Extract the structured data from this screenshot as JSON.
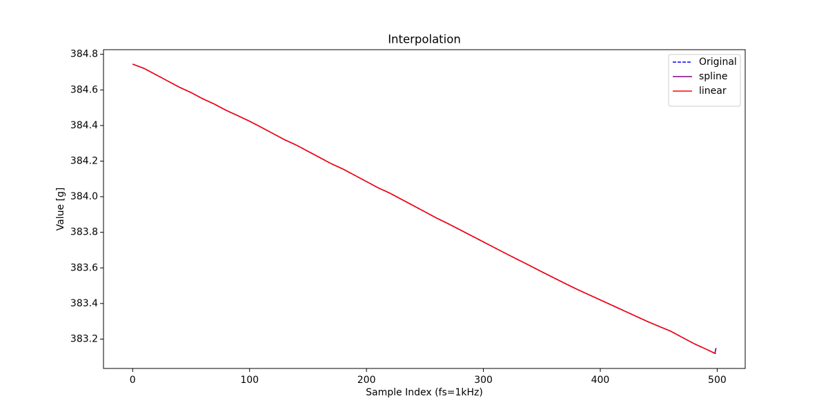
{
  "chart_data": {
    "type": "line",
    "title": "Interpolation",
    "xlabel": "Sample Index (fs=1kHz)",
    "ylabel": "Value [g]",
    "x": [
      0,
      10,
      20,
      30,
      40,
      50,
      60,
      70,
      80,
      90,
      100,
      110,
      120,
      130,
      140,
      150,
      160,
      170,
      180,
      190,
      200,
      210,
      220,
      230,
      240,
      250,
      260,
      270,
      280,
      290,
      300,
      310,
      320,
      330,
      340,
      350,
      360,
      370,
      380,
      390,
      400,
      410,
      420,
      430,
      440,
      450,
      460,
      470,
      480,
      490,
      498,
      499
    ],
    "series": [
      {
        "name": "Original",
        "color": "#0000ff",
        "dashed": true,
        "values": [
          384.745,
          384.72,
          384.685,
          384.65,
          384.615,
          384.585,
          384.55,
          384.52,
          384.485,
          384.455,
          384.424,
          384.39,
          384.355,
          384.32,
          384.29,
          384.255,
          384.22,
          384.185,
          384.155,
          384.12,
          384.085,
          384.05,
          384.02,
          383.985,
          383.95,
          383.915,
          383.88,
          383.848,
          383.814,
          383.78,
          383.746,
          383.712,
          383.678,
          383.645,
          383.612,
          383.578,
          383.545,
          383.512,
          383.48,
          383.45,
          383.42,
          383.39,
          383.36,
          383.33,
          383.3,
          383.272,
          383.245,
          383.21,
          383.175,
          383.145,
          383.12,
          383.15
        ]
      },
      {
        "name": "spline",
        "color": "#800080",
        "dashed": false,
        "values": [
          384.745,
          384.72,
          384.685,
          384.65,
          384.615,
          384.585,
          384.55,
          384.52,
          384.485,
          384.455,
          384.424,
          384.39,
          384.355,
          384.32,
          384.29,
          384.255,
          384.22,
          384.185,
          384.155,
          384.12,
          384.085,
          384.05,
          384.02,
          383.985,
          383.95,
          383.915,
          383.88,
          383.848,
          383.814,
          383.78,
          383.746,
          383.712,
          383.678,
          383.645,
          383.612,
          383.578,
          383.545,
          383.512,
          383.48,
          383.45,
          383.42,
          383.39,
          383.36,
          383.33,
          383.3,
          383.272,
          383.245,
          383.21,
          383.175,
          383.145,
          383.12,
          383.15
        ]
      },
      {
        "name": "linear",
        "color": "#ff0000",
        "dashed": false,
        "values": [
          384.745,
          384.72,
          384.685,
          384.65,
          384.615,
          384.585,
          384.55,
          384.52,
          384.485,
          384.455,
          384.424,
          384.39,
          384.355,
          384.32,
          384.29,
          384.255,
          384.22,
          384.185,
          384.155,
          384.12,
          384.085,
          384.05,
          384.02,
          383.985,
          383.95,
          383.915,
          383.88,
          383.848,
          383.814,
          383.78,
          383.746,
          383.712,
          383.678,
          383.645,
          383.612,
          383.578,
          383.545,
          383.512,
          383.48,
          383.45,
          383.42,
          383.39,
          383.36,
          383.33,
          383.3,
          383.272,
          383.245,
          383.21,
          383.175,
          383.145,
          383.12,
          383.12
        ]
      }
    ],
    "xlim": [
      -24.95,
      523.95
    ],
    "xticks": [
      0,
      100,
      200,
      300,
      400,
      500
    ],
    "ylim": [
      383.035,
      384.826
    ],
    "yticks": [
      383.2,
      383.4,
      383.6,
      383.8,
      {
        "value": 384,
        "label": "384.0"
      },
      384.2,
      384.4,
      384.6,
      384.8
    ],
    "grid": false,
    "legend": "upper right"
  }
}
